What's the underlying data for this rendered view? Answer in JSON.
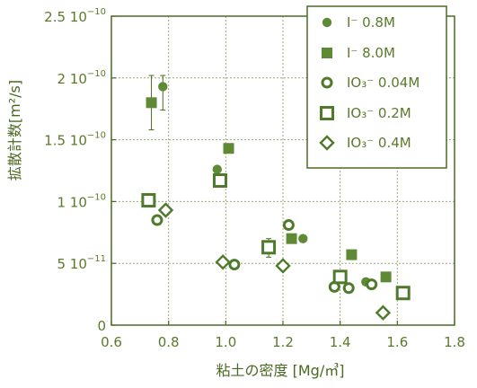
{
  "colors": {
    "axis": "#4a6a22",
    "grid": "#9aa878",
    "filled": "#5e8a36",
    "open": "#4f7a2c",
    "text": "#5a7a2a"
  },
  "chart_data": {
    "type": "scatter",
    "xlabel": "粘土の密度 [Mg/㎥]",
    "ylabel": "拡散計数[m²/s]",
    "xlim": [
      0.6,
      1.8
    ],
    "ylim": [
      0,
      2.5e-10
    ],
    "x_ticks": [
      0.6,
      0.8,
      1.0,
      1.2,
      1.4,
      1.6,
      1.8
    ],
    "x_tick_labels": [
      "0.6",
      "0.8",
      "1.0",
      "1.2",
      "1.4",
      "1.6",
      "1.8"
    ],
    "y_ticks": [
      0,
      5e-11,
      1e-10,
      1.5e-10,
      2e-10,
      2.5e-10
    ],
    "y_tick_labels": [
      {
        "base": "0",
        "exp": ""
      },
      {
        "base": "5 10",
        "exp": "−11"
      },
      {
        "base": "1 10",
        "exp": "−10"
      },
      {
        "base": "1.5 10",
        "exp": "−10"
      },
      {
        "base": "2 10",
        "exp": "−10"
      },
      {
        "base": "2.5 10",
        "exp": "−10"
      }
    ],
    "grid": true,
    "legend_position": "top-right",
    "series": [
      {
        "name": "I⁻ 0.8M",
        "marker": "filled-circle",
        "points": [
          [
            0.78,
            1.93e-10
          ],
          [
            0.97,
            1.26e-10
          ],
          [
            1.22,
            8.1e-11
          ],
          [
            1.27,
            7e-11
          ],
          [
            1.49,
            3.5e-11
          ]
        ],
        "errors": [
          [
            0.78,
            1.74e-10,
            2.02e-10
          ]
        ]
      },
      {
        "name": "I⁻ 8.0M",
        "marker": "filled-square",
        "points": [
          [
            0.74,
            1.8e-10
          ],
          [
            1.01,
            1.43e-10
          ],
          [
            1.23,
            7e-11
          ],
          [
            1.44,
            5.7e-11
          ],
          [
            1.56,
            3.9e-11
          ]
        ],
        "errors": [
          [
            0.74,
            1.58e-10,
            2.02e-10
          ]
        ]
      },
      {
        "name": "IO₃⁻ 0.04M",
        "marker": "open-circle",
        "points": [
          [
            0.76,
            8.5e-11
          ],
          [
            1.03,
            4.9e-11
          ],
          [
            1.22,
            8.1e-11
          ],
          [
            1.38,
            3.1e-11
          ],
          [
            1.43,
            3e-11
          ],
          [
            1.51,
            3.3e-11
          ]
        ]
      },
      {
        "name": "IO₃⁻ 0.2M",
        "marker": "open-square",
        "points": [
          [
            0.73,
            1.01e-10
          ],
          [
            0.98,
            1.17e-10
          ],
          [
            1.15,
            6.3e-11
          ],
          [
            1.4,
            3.9e-11
          ],
          [
            1.62,
            2.6e-11
          ]
        ],
        "errors": [
          [
            1.15,
            5.5e-11,
            7e-11
          ]
        ]
      },
      {
        "name": "IO₃⁻ 0.4M",
        "marker": "open-diamond",
        "points": [
          [
            0.79,
            9.3e-11
          ],
          [
            0.99,
            5.1e-11
          ],
          [
            1.2,
            4.8e-11
          ],
          [
            1.55,
            1e-11
          ]
        ]
      }
    ]
  }
}
